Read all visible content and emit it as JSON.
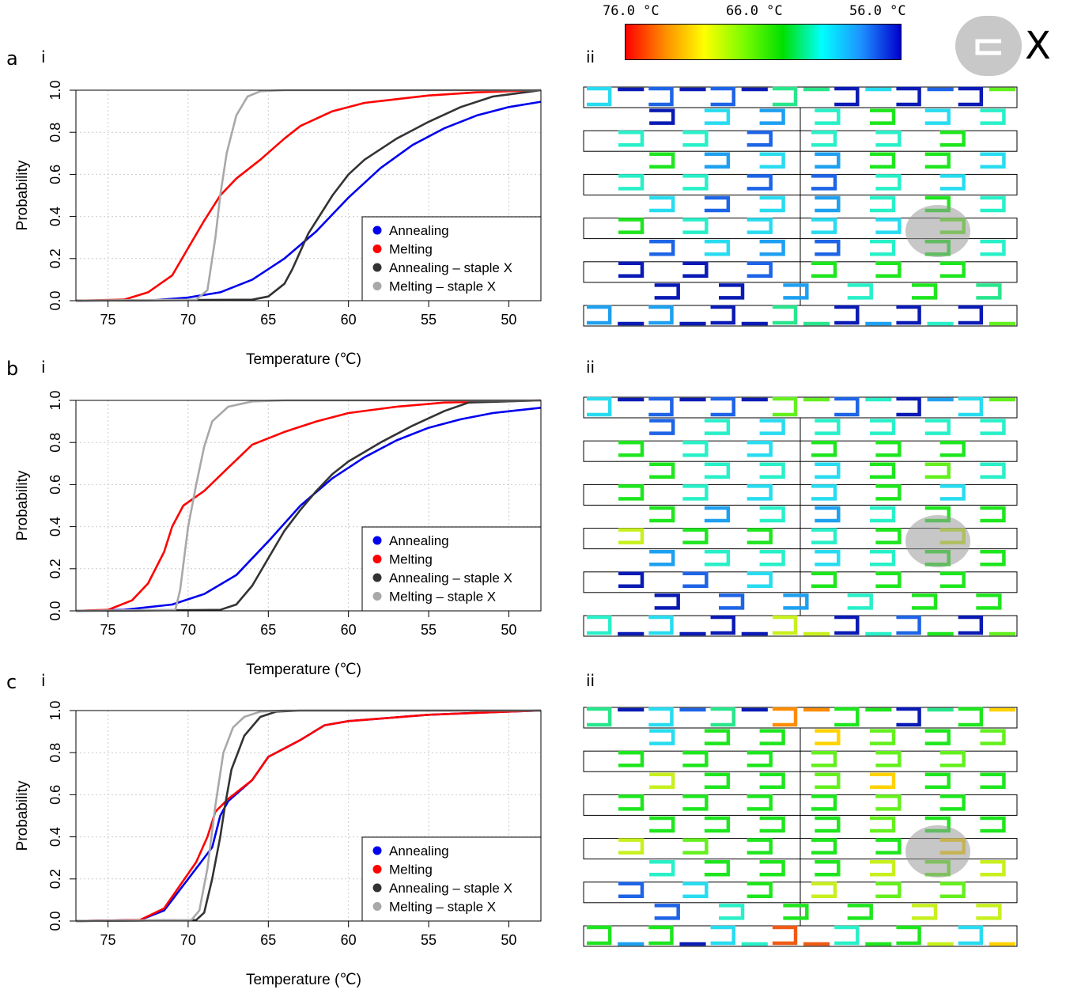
{
  "colorbar": {
    "labels": [
      "76.0 °C",
      "66.0 °C",
      "56.0 °C"
    ],
    "gradient_colors": [
      "#ff0000",
      "#ff8c00",
      "#ffff00",
      "#7cfc00",
      "#00e000",
      "#00ffff",
      "#1e90ff",
      "#0000cd"
    ]
  },
  "staple_marker": {
    "label": "X",
    "color": "#c8c8c8",
    "icon": "staple-icon"
  },
  "panels": [
    {
      "letter": "a",
      "sub_i": "i",
      "sub_ii": "ii"
    },
    {
      "letter": "b",
      "sub_i": "i",
      "sub_ii": "ii"
    },
    {
      "letter": "c",
      "sub_i": "i",
      "sub_ii": "ii"
    }
  ],
  "chart_data": [
    {
      "type": "line",
      "panel": "a",
      "xlabel": "Temperature (℃)",
      "ylabel": "Probability",
      "xlim": [
        77,
        48
      ],
      "ylim": [
        0,
        1
      ],
      "x_ticks": [
        75,
        70,
        65,
        60,
        55,
        50
      ],
      "y_ticks": [
        "0.0",
        "0.2",
        "0.4",
        "0.6",
        "0.8",
        "1.0"
      ],
      "grid": true,
      "legend_position": "bottom-right",
      "series": [
        {
          "name": "Annealing",
          "color": "#0000ee",
          "points": [
            [
              77,
              0
            ],
            [
              72,
              0.003
            ],
            [
              70,
              0.015
            ],
            [
              68,
              0.04
            ],
            [
              66,
              0.1
            ],
            [
              64,
              0.2
            ],
            [
              62,
              0.33
            ],
            [
              60,
              0.49
            ],
            [
              58,
              0.63
            ],
            [
              56,
              0.74
            ],
            [
              54,
              0.82
            ],
            [
              52,
              0.88
            ],
            [
              50,
              0.92
            ],
            [
              48,
              0.945
            ]
          ]
        },
        {
          "name": "Melting",
          "color": "#ff0000",
          "points": [
            [
              77,
              0
            ],
            [
              74,
              0.005
            ],
            [
              72.5,
              0.04
            ],
            [
              71,
              0.12
            ],
            [
              70,
              0.25
            ],
            [
              69,
              0.38
            ],
            [
              68,
              0.5
            ],
            [
              67,
              0.58
            ],
            [
              65.5,
              0.67
            ],
            [
              64,
              0.77
            ],
            [
              63,
              0.83
            ],
            [
              61,
              0.9
            ],
            [
              59,
              0.94
            ],
            [
              55,
              0.975
            ],
            [
              52,
              0.99
            ],
            [
              48,
              1.0
            ]
          ]
        },
        {
          "name": "Annealing – staple X",
          "color": "#333333",
          "points": [
            [
              77,
              0
            ],
            [
              66,
              0.005
            ],
            [
              65,
              0.02
            ],
            [
              64,
              0.08
            ],
            [
              63.5,
              0.15
            ],
            [
              62.5,
              0.32
            ],
            [
              61.5,
              0.44
            ],
            [
              61,
              0.5
            ],
            [
              60,
              0.6
            ],
            [
              59,
              0.67
            ],
            [
              57,
              0.77
            ],
            [
              55,
              0.85
            ],
            [
              53,
              0.92
            ],
            [
              51,
              0.97
            ],
            [
              49,
              0.99
            ],
            [
              48,
              1.0
            ]
          ]
        },
        {
          "name": "Melting – staple X",
          "color": "#a8a8a8",
          "points": [
            [
              77,
              0
            ],
            [
              69.5,
              0.005
            ],
            [
              68.8,
              0.05
            ],
            [
              68.3,
              0.3
            ],
            [
              68,
              0.5
            ],
            [
              67.6,
              0.7
            ],
            [
              67,
              0.88
            ],
            [
              66.3,
              0.97
            ],
            [
              65.5,
              0.995
            ],
            [
              64,
              1.0
            ],
            [
              48,
              1.0
            ]
          ]
        }
      ]
    },
    {
      "type": "line",
      "panel": "b",
      "xlabel": "Temperature (℃)",
      "ylabel": "Probability",
      "xlim": [
        77,
        48
      ],
      "ylim": [
        0,
        1
      ],
      "x_ticks": [
        75,
        70,
        65,
        60,
        55,
        50
      ],
      "y_ticks": [
        "0.0",
        "0.2",
        "0.4",
        "0.6",
        "0.8",
        "1.0"
      ],
      "grid": true,
      "legend_position": "bottom-right",
      "series": [
        {
          "name": "Annealing",
          "color": "#0000ee",
          "points": [
            [
              77,
              0
            ],
            [
              74,
              0.005
            ],
            [
              71,
              0.03
            ],
            [
              69,
              0.08
            ],
            [
              67,
              0.17
            ],
            [
              65,
              0.33
            ],
            [
              63,
              0.5
            ],
            [
              61,
              0.63
            ],
            [
              59,
              0.73
            ],
            [
              57,
              0.81
            ],
            [
              55,
              0.87
            ],
            [
              53,
              0.91
            ],
            [
              51,
              0.94
            ],
            [
              48,
              0.965
            ]
          ]
        },
        {
          "name": "Melting",
          "color": "#ff0000",
          "points": [
            [
              77,
              0
            ],
            [
              75,
              0.005
            ],
            [
              73.5,
              0.05
            ],
            [
              72.5,
              0.13
            ],
            [
              71.5,
              0.28
            ],
            [
              71,
              0.4
            ],
            [
              70.3,
              0.5
            ],
            [
              69,
              0.57
            ],
            [
              67.5,
              0.68
            ],
            [
              66,
              0.79
            ],
            [
              64,
              0.85
            ],
            [
              62,
              0.9
            ],
            [
              60,
              0.94
            ],
            [
              57,
              0.97
            ],
            [
              54,
              0.99
            ],
            [
              48,
              1.0
            ]
          ]
        },
        {
          "name": "Annealing – staple X",
          "color": "#333333",
          "points": [
            [
              77,
              0
            ],
            [
              68,
              0.005
            ],
            [
              67,
              0.03
            ],
            [
              66,
              0.12
            ],
            [
              65,
              0.25
            ],
            [
              64,
              0.38
            ],
            [
              63,
              0.48
            ],
            [
              62,
              0.57
            ],
            [
              61,
              0.65
            ],
            [
              60,
              0.71
            ],
            [
              58,
              0.8
            ],
            [
              56,
              0.88
            ],
            [
              54,
              0.95
            ],
            [
              52.5,
              0.99
            ],
            [
              48,
              1.0
            ]
          ]
        },
        {
          "name": "Melting – staple X",
          "color": "#a8a8a8",
          "points": [
            [
              77,
              0
            ],
            [
              70.8,
              0.005
            ],
            [
              70.5,
              0.1
            ],
            [
              70,
              0.4
            ],
            [
              69.5,
              0.6
            ],
            [
              69,
              0.78
            ],
            [
              68.5,
              0.9
            ],
            [
              67.5,
              0.97
            ],
            [
              66,
              0.995
            ],
            [
              64,
              1.0
            ],
            [
              48,
              1.0
            ]
          ]
        }
      ]
    },
    {
      "type": "line",
      "panel": "c",
      "xlabel": "Temperature (℃)",
      "ylabel": "Probability",
      "xlim": [
        77,
        48
      ],
      "ylim": [
        0,
        1
      ],
      "x_ticks": [
        75,
        70,
        65,
        60,
        55,
        50
      ],
      "y_ticks": [
        "0.0",
        "0.2",
        "0.4",
        "0.6",
        "0.8",
        "1.0"
      ],
      "grid": true,
      "legend_position": "bottom-right",
      "series": [
        {
          "name": "Annealing",
          "color": "#0000ee",
          "points": [
            [
              77,
              0
            ],
            [
              73,
              0.005
            ],
            [
              71.5,
              0.05
            ],
            [
              70.5,
              0.15
            ],
            [
              69.5,
              0.25
            ],
            [
              68.5,
              0.35
            ],
            [
              68,
              0.5
            ],
            [
              67.5,
              0.57
            ],
            [
              66,
              0.67
            ],
            [
              65,
              0.78
            ],
            [
              63,
              0.86
            ],
            [
              61.5,
              0.93
            ],
            [
              60,
              0.95
            ],
            [
              55,
              0.98
            ],
            [
              50,
              0.995
            ],
            [
              48,
              1.0
            ]
          ]
        },
        {
          "name": "Melting",
          "color": "#ff0000",
          "points": [
            [
              77,
              0
            ],
            [
              73,
              0.005
            ],
            [
              71.5,
              0.06
            ],
            [
              70.5,
              0.17
            ],
            [
              69.5,
              0.28
            ],
            [
              68.8,
              0.4
            ],
            [
              68.3,
              0.52
            ],
            [
              67.5,
              0.58
            ],
            [
              66,
              0.67
            ],
            [
              65,
              0.78
            ],
            [
              63,
              0.86
            ],
            [
              61.5,
              0.93
            ],
            [
              60,
              0.95
            ],
            [
              55,
              0.98
            ],
            [
              50,
              0.995
            ],
            [
              48,
              1.0
            ]
          ]
        },
        {
          "name": "Annealing – staple X",
          "color": "#333333",
          "points": [
            [
              77,
              0
            ],
            [
              69.5,
              0.005
            ],
            [
              69,
              0.04
            ],
            [
              68.5,
              0.2
            ],
            [
              68,
              0.4
            ],
            [
              67.7,
              0.55
            ],
            [
              67.3,
              0.72
            ],
            [
              66.5,
              0.88
            ],
            [
              65.5,
              0.97
            ],
            [
              64.5,
              0.995
            ],
            [
              63,
              1.0
            ],
            [
              48,
              1.0
            ]
          ]
        },
        {
          "name": "Melting – staple X",
          "color": "#a8a8a8",
          "points": [
            [
              77,
              0
            ],
            [
              69.8,
              0.005
            ],
            [
              69.3,
              0.05
            ],
            [
              68.8,
              0.25
            ],
            [
              68.3,
              0.55
            ],
            [
              67.8,
              0.8
            ],
            [
              67.2,
              0.92
            ],
            [
              66.5,
              0.97
            ],
            [
              65.5,
              0.995
            ],
            [
              64,
              1.0
            ],
            [
              48,
              1.0
            ]
          ]
        }
      ]
    }
  ]
}
